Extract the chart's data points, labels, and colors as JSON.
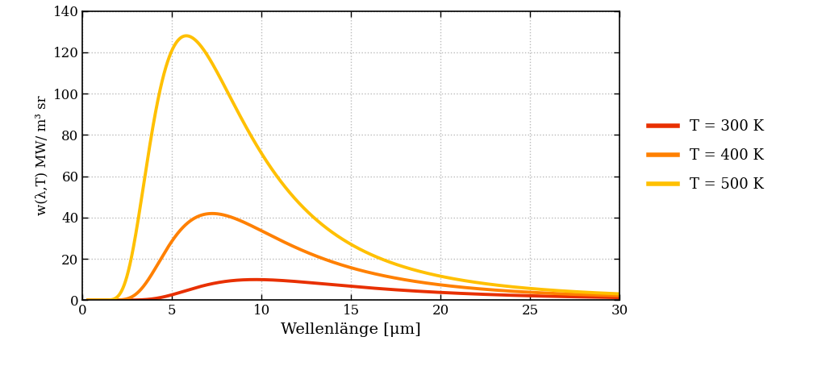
{
  "xlabel": "Wellenlänge [μm]",
  "ylabel": "w(λ,T) MW/ m³ sr",
  "temperatures": [
    300,
    400,
    500
  ],
  "colors": [
    "#E83000",
    "#FF8000",
    "#FFC000"
  ],
  "line_width": 2.8,
  "xlim": [
    0,
    30
  ],
  "ylim": [
    0,
    140
  ],
  "yticks": [
    0,
    20,
    40,
    60,
    80,
    100,
    120,
    140
  ],
  "xticks": [
    0,
    5,
    10,
    15,
    20,
    25,
    30
  ],
  "legend_labels": [
    "T = 300 K",
    "T = 400 K",
    "T = 500 K"
  ],
  "background_color": "#ffffff",
  "plot_bg_color": "#ffffff",
  "grid_color": "#bbbbbb",
  "grid_style": ":",
  "grid_linewidth": 1.0,
  "xlabel_fontsize": 14,
  "ylabel_fontsize": 12,
  "tick_fontsize": 12,
  "legend_fontsize": 13,
  "legend_handlelength": 2.0,
  "legend_labelspacing": 1.0,
  "spine_color": "#000000",
  "spine_linewidth": 1.2
}
